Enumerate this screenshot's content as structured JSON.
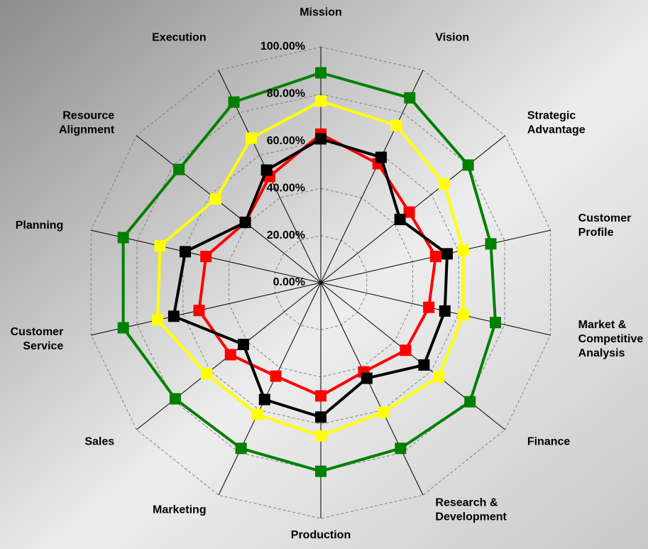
{
  "chart_data": {
    "type": "radar",
    "categories": [
      "Mission",
      "Vision",
      "Strategic\nAdvantage",
      "Customer\nProfile",
      "Market &\nCompetitive\nAnalysis",
      "Finance",
      "Research &\nDevelopment",
      "Production",
      "Marketing",
      "Sales",
      "Customer\nService",
      "Planning",
      "Resource\nAlignment",
      "Execution"
    ],
    "series": [
      {
        "color": "#008000",
        "values": [
          89,
          87,
          80,
          74,
          76,
          81,
          78,
          80,
          78,
          79,
          86,
          86,
          77,
          85
        ]
      },
      {
        "color": "#ffff00",
        "values": [
          77,
          74,
          67,
          62,
          62,
          64,
          61,
          65,
          62,
          62,
          71,
          70,
          57,
          68
        ]
      },
      {
        "color": "#ff0000",
        "values": [
          63,
          56,
          48,
          50,
          47,
          46,
          42,
          48,
          44,
          49,
          53,
          50,
          41,
          50
        ]
      },
      {
        "color": "#000000",
        "values": [
          61,
          59,
          43,
          55,
          54,
          56,
          45,
          57,
          55,
          42,
          64,
          59,
          41,
          53
        ]
      }
    ],
    "ylim": [
      0,
      100
    ],
    "yticks": [
      {
        "value": 0,
        "label": "0.00%"
      },
      {
        "value": 20,
        "label": "20.00%"
      },
      {
        "value": 40,
        "label": "40.00%"
      },
      {
        "value": 60,
        "label": "60.00%"
      },
      {
        "value": 80,
        "label": "80.00%"
      },
      {
        "value": 100,
        "label": "100.00%"
      }
    ],
    "grid": true
  }
}
